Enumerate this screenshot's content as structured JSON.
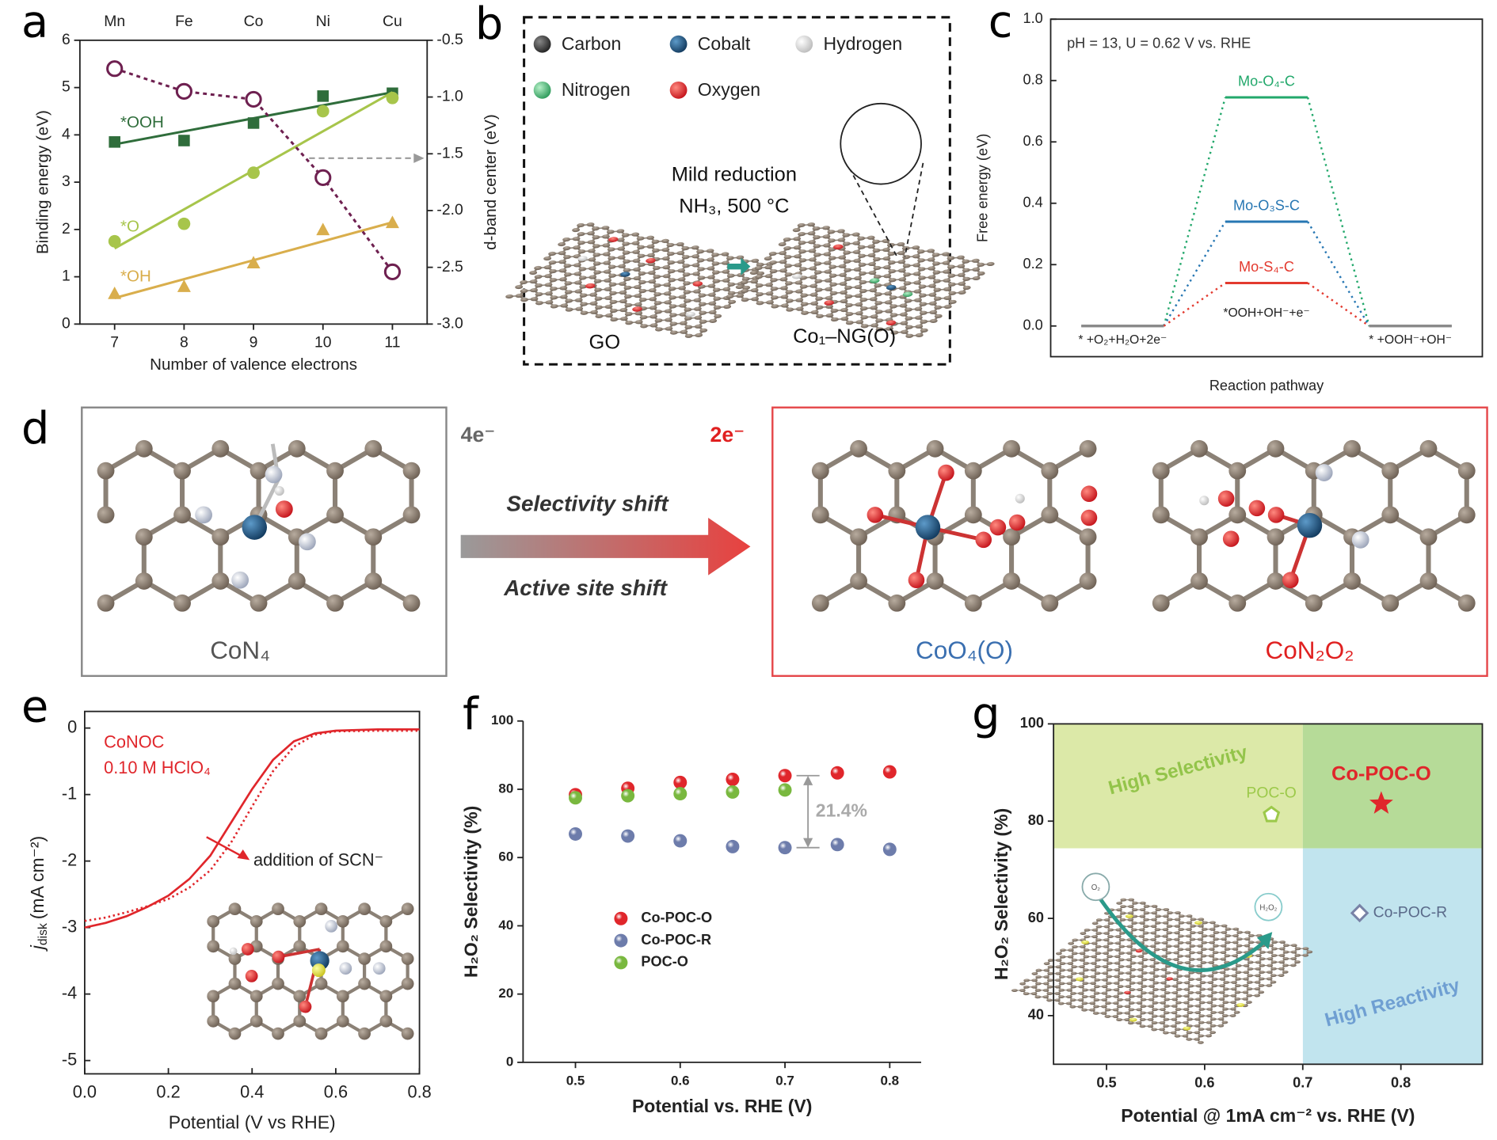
{
  "chart_data": [
    {
      "panel": "a",
      "type": "scatter",
      "x": [
        7,
        8,
        9,
        10,
        11
      ],
      "top_labels": [
        "Mn",
        "Fe",
        "Co",
        "Ni",
        "Cu"
      ],
      "xlim": [
        6.5,
        11.5
      ],
      "xticks": [
        7,
        8,
        9,
        10,
        11
      ],
      "ylim": [
        0,
        6
      ],
      "yticks": [
        0,
        1,
        2,
        3,
        4,
        5,
        6
      ],
      "y2lim": [
        -3.0,
        -0.5
      ],
      "y2ticks": [
        -0.5,
        {
          "value": -1.0,
          "label": "-1.0"
        },
        -1.5,
        {
          "value": -2.0,
          "label": "-2.0"
        },
        -2.5,
        {
          "value": -3.0,
          "label": "-3.0"
        }
      ],
      "x_label": "Number of valence electrons",
      "y_label": "Binding energy (eV)",
      "y2_label": "d-band center (eV)",
      "series": [
        {
          "name": "*OOH",
          "color": "#2f6d3b",
          "marker": "square",
          "values": [
            3.85,
            3.88,
            4.25,
            4.82,
            4.88
          ],
          "trend": [
            3.8,
            4.9
          ]
        },
        {
          "name": "*O",
          "color": "#a7c54b",
          "marker": "circle",
          "values": [
            1.75,
            2.12,
            3.2,
            4.5,
            4.78
          ],
          "trend": [
            1.6,
            4.9
          ]
        },
        {
          "name": "*OH",
          "color": "#d9ae4c",
          "marker": "triangle",
          "values": [
            0.65,
            0.8,
            1.3,
            2.0,
            2.15
          ],
          "trend": [
            0.55,
            2.15
          ]
        },
        {
          "axis": "y2",
          "color": "#6e2050",
          "marker": "open-circle",
          "values": [
            -0.75,
            -0.95,
            -1.02,
            -1.71,
            -2.54
          ]
        }
      ]
    },
    {
      "panel": "c",
      "type": "step",
      "categories": [
        "* +O₂+H₂O+2e⁻",
        "*OOH+OH⁻+e⁻",
        "* +OOH⁻+OH⁻"
      ],
      "ylim": [
        -0.1,
        1.0
      ],
      "yticks": [
        {
          "value": 0,
          "label": "0.0"
        },
        0.2,
        0.4,
        0.6,
        0.8,
        {
          "value": 1,
          "label": "1.0"
        }
      ],
      "y_label": "Free energy (eV)",
      "x_label": "Reaction pathway",
      "annotation": "pH = 13, U = 0.62 V vs. RHE",
      "series": [
        {
          "name": "Mo-O₄-C",
          "color": "#22a86b",
          "values": [
            0,
            0.745,
            0
          ]
        },
        {
          "name": "Mo-O₃S-C",
          "color": "#2777b3",
          "values": [
            0,
            0.34,
            0
          ]
        },
        {
          "name": "Mo-S₄-C",
          "color": "#e33a2f",
          "values": [
            0,
            0.14,
            0
          ]
        }
      ]
    },
    {
      "panel": "e",
      "type": "line",
      "x": [
        0,
        0.05,
        0.1,
        0.15,
        0.2,
        0.25,
        0.3,
        0.35,
        0.4,
        0.45,
        0.5,
        0.55,
        0.6,
        0.7,
        0.8
      ],
      "xlim": [
        0,
        0.8
      ],
      "xticks": [
        {
          "value": 0,
          "label": "0.0"
        },
        0.2,
        0.4,
        0.6,
        0.8
      ],
      "ylim": [
        -5.2,
        0.25
      ],
      "yticks": [
        0,
        -1,
        -2,
        -3,
        -4,
        -5
      ],
      "x_label": "Potential (V vs RHE)",
      "y_label_symbol": "j",
      "y_label_subscript": "disk",
      "y_label_unit": "(mA cm⁻²)",
      "annotations": [
        "CoNOC",
        "0.10 M HClO₄",
        "addition of SCN⁻"
      ],
      "series": [
        {
          "color": "#e0262b",
          "style": "solid",
          "values": [
            -3.0,
            -2.93,
            -2.83,
            -2.69,
            -2.52,
            -2.27,
            -1.92,
            -1.42,
            -0.92,
            -0.48,
            -0.2,
            -0.08,
            -0.04,
            -0.02,
            -0.02
          ]
        },
        {
          "color": "#e0262b",
          "style": "dotted",
          "values": [
            -2.9,
            -2.85,
            -2.77,
            -2.68,
            -2.57,
            -2.4,
            -2.14,
            -1.72,
            -1.18,
            -0.65,
            -0.28,
            -0.1,
            -0.05,
            -0.04,
            -0.04
          ]
        }
      ]
    },
    {
      "panel": "f",
      "type": "scatter",
      "x": [
        0.5,
        0.55,
        0.6,
        0.65,
        0.7,
        0.75,
        0.8
      ],
      "xlim": [
        0.45,
        0.83
      ],
      "xticks": [
        0.5,
        0.6,
        0.7,
        0.8
      ],
      "ylim": [
        0,
        100
      ],
      "yticks": [
        0,
        20,
        40,
        60,
        80,
        100
      ],
      "x_label": "Potential vs. RHE (V)",
      "y_label": "H₂O₂ Selectivity (%)",
      "annotation": "21.4%",
      "series": [
        {
          "name": "Co-POC-O",
          "color": "#e0262b",
          "values": [
            78.4,
            80.3,
            82.0,
            82.9,
            84.0,
            84.8,
            85.1
          ]
        },
        {
          "name": "Co-POC-R",
          "color": "#6d7cab",
          "values": [
            66.9,
            66.3,
            64.9,
            63.2,
            62.9,
            63.8,
            62.4
          ]
        },
        {
          "name": "POC-O",
          "color": "#79b83f",
          "values": [
            77.5,
            78.1,
            78.7,
            79.2,
            79.8,
            null,
            null
          ]
        }
      ]
    },
    {
      "panel": "g",
      "type": "scatter",
      "xlim": [
        0.446,
        0.883
      ],
      "xticks": [
        0.5,
        0.6,
        0.7,
        0.8
      ],
      "ylim": [
        30,
        100
      ],
      "yticks": [
        40,
        60,
        80,
        100
      ],
      "x_label": "Potential @ 1mA cm⁻² vs. RHE (V)",
      "y_label": "H₂O₂ Selectivity (%)",
      "x_split": 0.7,
      "y_split": 74.4,
      "regions": [
        {
          "quadrant": "top-left",
          "color": "#dce9a8",
          "label": "High Selectivity",
          "label_color": "#93c44a"
        },
        {
          "quadrant": "top-right",
          "color": "#b6db98"
        },
        {
          "quadrant": "bottom-right",
          "color": "#c1e4ee",
          "label": "High Reactivity",
          "label_color": "#6f9fd2"
        },
        {
          "quadrant": "bottom-left",
          "color": "#ffffff"
        }
      ],
      "points": [
        {
          "name": "Co-POC-O",
          "x": 0.78,
          "y": 83.6,
          "marker": "star",
          "color": "#e0262b"
        },
        {
          "name": "POC-O",
          "x": 0.668,
          "y": 81.3,
          "marker": "pentagon",
          "color": "#9cc94a"
        },
        {
          "name": "Co-POC-R",
          "x": 0.758,
          "y": 61.1,
          "marker": "diamond",
          "color": "#7882a6"
        }
      ],
      "inset_labels": [
        "O₂",
        "H₂O₂"
      ]
    }
  ],
  "panel_b": {
    "letter": "b",
    "legend": [
      "Carbon",
      "Cobalt",
      "Hydrogen",
      "Nitrogen",
      "Oxygen"
    ],
    "condition": [
      "Mild reduction",
      "NH₃, 500 °C"
    ],
    "labels": [
      "GO",
      "Co₁–NG(O)"
    ]
  },
  "panel_d": {
    "letter": "d",
    "left_label": "CoN₄",
    "left_top": "4e⁻",
    "right_top": "2e⁻",
    "shift_labels": [
      "Selectivity shift",
      "Active site shift"
    ],
    "right_labels": [
      "CoO₄(O)",
      "CoN₂O₂"
    ]
  }
}
